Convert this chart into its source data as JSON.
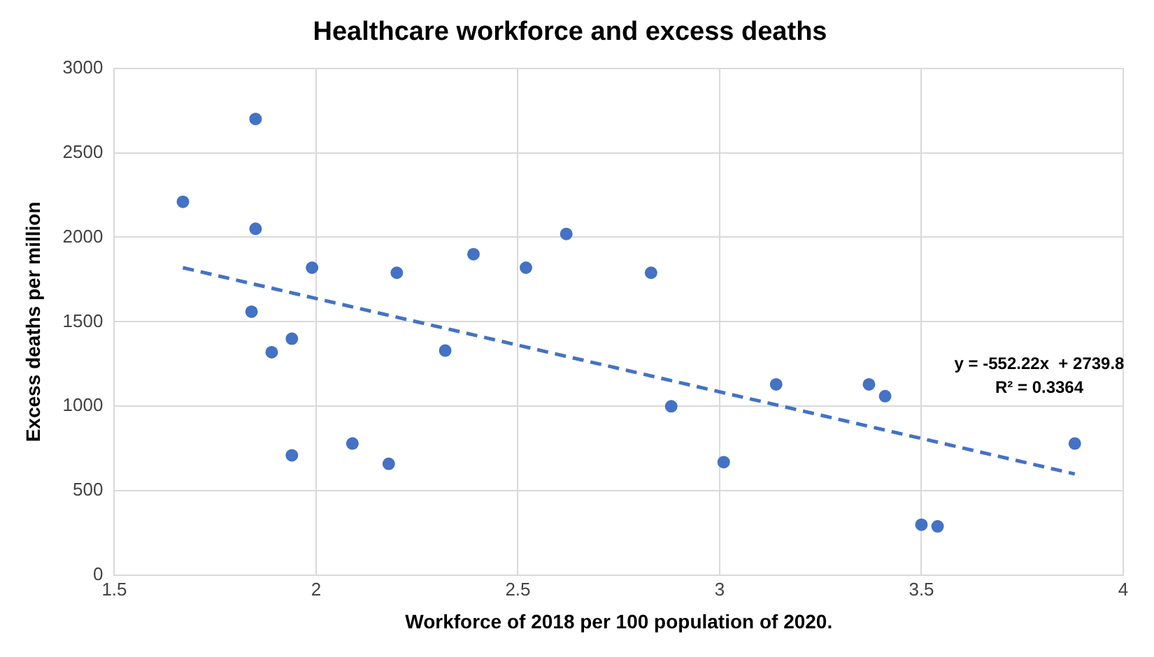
{
  "chart_data": {
    "type": "scatter",
    "title": "Healthcare workforce and excess deaths",
    "xlabel": "Workforce of 2018 per 100 population of 2020.",
    "ylabel": "Excess deaths per million",
    "xlim": [
      1.5,
      4
    ],
    "xticks": [
      1.5,
      2,
      2.5,
      3,
      3.5,
      4
    ],
    "ylim": [
      0,
      3000
    ],
    "yticks": [
      0,
      500,
      1000,
      1500,
      2000,
      2500,
      3000
    ],
    "grid": true,
    "legend": false,
    "marker": "circle",
    "series": [
      {
        "color": "#4472c4",
        "x": [
          1.67,
          1.85,
          1.85,
          1.84,
          1.89,
          1.94,
          1.94,
          1.99,
          2.09,
          2.18,
          2.2,
          2.32,
          2.39,
          2.52,
          2.62,
          2.83,
          2.88,
          3.01,
          3.14,
          3.37,
          3.41,
          3.5,
          3.54,
          3.88
        ],
        "values": [
          2210,
          2700,
          2050,
          1560,
          1320,
          1400,
          710,
          1820,
          780,
          660,
          1790,
          1330,
          1900,
          1820,
          2020,
          1790,
          1000,
          670,
          1130,
          1130,
          1060,
          300,
          290,
          780
        ]
      },
      {
        "type": "line",
        "color": "#4472c4",
        "marker": "none",
        "line_style": "dashed",
        "x": [
          1.67,
          3.88
        ],
        "values": [
          1820,
          600
        ]
      }
    ],
    "annotations": [
      "y = -552.22x  + 2739.8",
      "R² = 0.3364"
    ]
  }
}
